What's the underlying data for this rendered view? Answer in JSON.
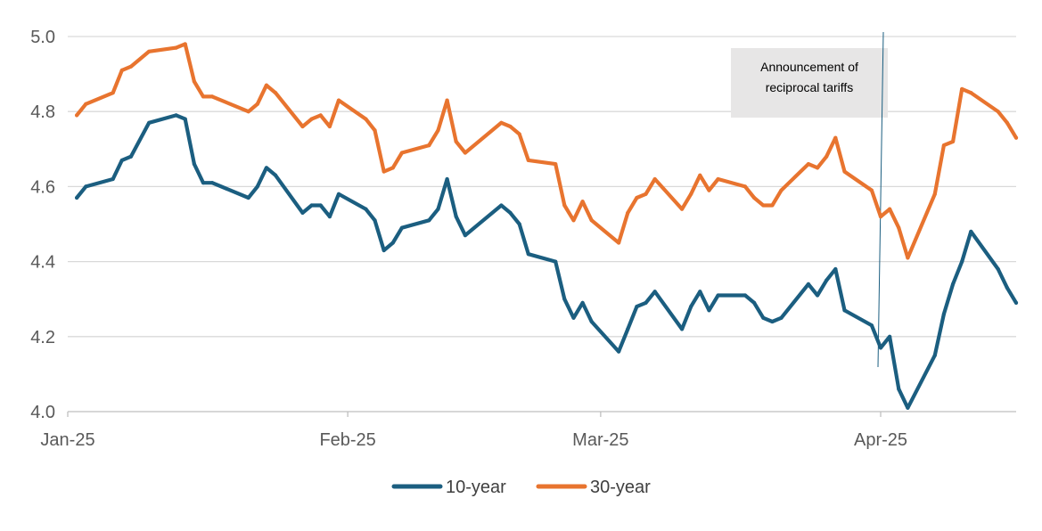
{
  "chart_data": {
    "type": "line",
    "title": "",
    "xlabel": "",
    "ylabel": "",
    "ylim": [
      4.0,
      5.0
    ],
    "yticks": [
      "5.0",
      "4.8",
      "4.6",
      "4.4",
      "4.2",
      "4.0"
    ],
    "ytick_values": [
      5.0,
      4.8,
      4.6,
      4.4,
      4.2,
      4.0
    ],
    "xlim": [
      "2025-01-01",
      "2025-04-16"
    ],
    "xticks": [
      {
        "label": "Jan-25",
        "date": "2025-01-01"
      },
      {
        "label": "Feb-25",
        "date": "2025-02-01"
      },
      {
        "label": "Mar-25",
        "date": "2025-03-01"
      },
      {
        "label": "Apr-25",
        "date": "2025-04-01"
      }
    ],
    "grid": "horizontal",
    "legend_position": "bottom",
    "annotation": {
      "date": "2025-04-01",
      "text_line1": "Announcement of",
      "text_line2": "reciprocal tariffs"
    },
    "x": [
      "2025-01-02",
      "2025-01-03",
      "2025-01-06",
      "2025-01-07",
      "2025-01-08",
      "2025-01-10",
      "2025-01-13",
      "2025-01-14",
      "2025-01-15",
      "2025-01-16",
      "2025-01-17",
      "2025-01-21",
      "2025-01-22",
      "2025-01-23",
      "2025-01-24",
      "2025-01-27",
      "2025-01-28",
      "2025-01-29",
      "2025-01-30",
      "2025-01-31",
      "2025-02-03",
      "2025-02-04",
      "2025-02-05",
      "2025-02-06",
      "2025-02-07",
      "2025-02-10",
      "2025-02-11",
      "2025-02-12",
      "2025-02-13",
      "2025-02-14",
      "2025-02-18",
      "2025-02-19",
      "2025-02-20",
      "2025-02-21",
      "2025-02-24",
      "2025-02-25",
      "2025-02-26",
      "2025-02-27",
      "2025-02-28",
      "2025-03-03",
      "2025-03-04",
      "2025-03-05",
      "2025-03-06",
      "2025-03-07",
      "2025-03-10",
      "2025-03-11",
      "2025-03-12",
      "2025-03-13",
      "2025-03-14",
      "2025-03-17",
      "2025-03-18",
      "2025-03-19",
      "2025-03-20",
      "2025-03-21",
      "2025-03-24",
      "2025-03-25",
      "2025-03-26",
      "2025-03-27",
      "2025-03-28",
      "2025-03-31",
      "2025-04-01",
      "2025-04-02",
      "2025-04-03",
      "2025-04-04",
      "2025-04-07",
      "2025-04-08",
      "2025-04-09",
      "2025-04-10",
      "2025-04-11",
      "2025-04-14",
      "2025-04-15",
      "2025-04-16"
    ],
    "series": [
      {
        "name": "10-year",
        "color": "#1b5e80",
        "values": [
          4.57,
          4.6,
          4.62,
          4.67,
          4.68,
          4.77,
          4.79,
          4.78,
          4.66,
          4.61,
          4.61,
          4.57,
          4.6,
          4.65,
          4.63,
          4.53,
          4.55,
          4.55,
          4.52,
          4.58,
          4.54,
          4.51,
          4.43,
          4.45,
          4.49,
          4.51,
          4.54,
          4.62,
          4.52,
          4.47,
          4.55,
          4.53,
          4.5,
          4.42,
          4.4,
          4.3,
          4.25,
          4.29,
          4.24,
          4.16,
          4.22,
          4.28,
          4.29,
          4.32,
          4.22,
          4.28,
          4.32,
          4.27,
          4.31,
          4.31,
          4.29,
          4.25,
          4.24,
          4.25,
          4.34,
          4.31,
          4.35,
          4.38,
          4.27,
          4.23,
          4.17,
          4.2,
          4.06,
          4.01,
          4.15,
          4.26,
          4.34,
          4.4,
          4.48,
          4.38,
          4.33,
          4.29
        ]
      },
      {
        "name": "30-year",
        "color": "#e8742f",
        "values": [
          4.79,
          4.82,
          4.85,
          4.91,
          4.92,
          4.96,
          4.97,
          4.98,
          4.88,
          4.84,
          4.84,
          4.8,
          4.82,
          4.87,
          4.85,
          4.76,
          4.78,
          4.79,
          4.76,
          4.83,
          4.78,
          4.75,
          4.64,
          4.65,
          4.69,
          4.71,
          4.75,
          4.83,
          4.72,
          4.69,
          4.77,
          4.76,
          4.74,
          4.67,
          4.66,
          4.55,
          4.51,
          4.56,
          4.51,
          4.45,
          4.53,
          4.57,
          4.58,
          4.62,
          4.54,
          4.58,
          4.63,
          4.59,
          4.62,
          4.6,
          4.57,
          4.55,
          4.55,
          4.59,
          4.66,
          4.65,
          4.68,
          4.73,
          4.64,
          4.59,
          4.52,
          4.54,
          4.49,
          4.41,
          4.58,
          4.71,
          4.72,
          4.86,
          4.85,
          4.8,
          4.77,
          4.73
        ]
      }
    ]
  }
}
